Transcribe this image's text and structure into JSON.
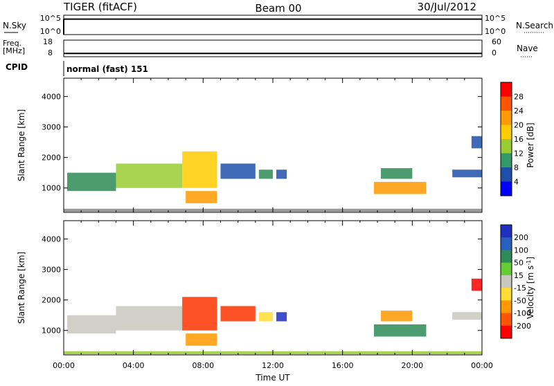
{
  "header": {
    "station": "TIGER (fitACF)",
    "beam": "Beam 00",
    "date": "30/Jul/2012"
  },
  "cpid_text": "normal (fast) 151",
  "chart_data": [
    {
      "type": "line",
      "name": "nsky-nsearch",
      "left_label": "N.Sky",
      "right_label": "N.Search",
      "left_ticks": [
        "10^5",
        "10^0"
      ],
      "right_ticks": [
        "10^5",
        "10^0"
      ],
      "xlim": [
        0,
        24
      ],
      "ylim": [
        0,
        5
      ],
      "value_level": 4
    },
    {
      "type": "line",
      "name": "freq-nave",
      "left_label_line1": "Freq.",
      "left_label_line2": "[MHz]",
      "right_label": "Nave",
      "left_ticks": [
        "18",
        "8"
      ],
      "right_ticks": [
        "60",
        "0"
      ],
      "xlim": [
        0,
        24
      ],
      "ylim": [
        8,
        18
      ],
      "value_level": 10,
      "cpid_label": "CPID"
    },
    {
      "type": "heatmap",
      "name": "power",
      "ylabel": "Slant Range [km]",
      "yticks": [
        "4000",
        "3000",
        "2000",
        "1000"
      ],
      "ytick_values": [
        4000,
        3000,
        2000,
        1000
      ],
      "ylim": [
        200,
        4600
      ],
      "xlim": [
        0,
        24
      ],
      "colorbar": {
        "label": "Power [dB]",
        "ticks": [
          "28",
          "24",
          "20",
          "16",
          "12",
          "8",
          "4"
        ],
        "colors": [
          "#ff0000",
          "#ff5500",
          "#ff9900",
          "#ffcc00",
          "#99cc33",
          "#339966",
          "#1f4faa",
          "#0000ff"
        ]
      },
      "blobs": [
        {
          "t0": 0.2,
          "t1": 3.0,
          "r0": 900,
          "r1": 1500,
          "color": "#2e8b57"
        },
        {
          "t0": 3.0,
          "t1": 6.8,
          "r0": 1000,
          "r1": 1800,
          "color": "#9acd32"
        },
        {
          "t0": 6.8,
          "t1": 8.8,
          "r0": 1000,
          "r1": 2200,
          "color": "#ffcc00"
        },
        {
          "t0": 7.0,
          "t1": 8.8,
          "r0": 500,
          "r1": 900,
          "color": "#ff9900"
        },
        {
          "t0": 9.0,
          "t1": 11.0,
          "r0": 1300,
          "r1": 1800,
          "color": "#1f4faa"
        },
        {
          "t0": 11.2,
          "t1": 12.0,
          "r0": 1300,
          "r1": 1600,
          "color": "#2e8b57"
        },
        {
          "t0": 12.2,
          "t1": 12.8,
          "r0": 1300,
          "r1": 1600,
          "color": "#1f4faa"
        },
        {
          "t0": 17.8,
          "t1": 20.8,
          "r0": 800,
          "r1": 1200,
          "color": "#ff9900"
        },
        {
          "t0": 18.2,
          "t1": 20.0,
          "r0": 1300,
          "r1": 1650,
          "color": "#2e8b57"
        },
        {
          "t0": 22.3,
          "t1": 24.0,
          "r0": 1350,
          "r1": 1600,
          "color": "#1f4faa"
        },
        {
          "t0": 23.4,
          "t1": 24.0,
          "r0": 2300,
          "r1": 2700,
          "color": "#1f4faa"
        },
        {
          "t0": 0.0,
          "t1": 24.0,
          "r0": 220,
          "r1": 320,
          "color": "#888888"
        }
      ]
    },
    {
      "type": "heatmap",
      "name": "velocity",
      "ylabel": "Slant Range [km]",
      "yticks": [
        "4000",
        "3000",
        "2000",
        "1000"
      ],
      "ytick_values": [
        4000,
        3000,
        2000,
        1000
      ],
      "ylim": [
        200,
        4600
      ],
      "xlim": [
        0,
        24
      ],
      "xticks": [
        "00:00",
        "04:00",
        "08:00",
        "12:00",
        "16:00",
        "20:00",
        "00:00"
      ],
      "xtick_values": [
        0,
        4,
        8,
        12,
        16,
        20,
        24
      ],
      "xlabel": "Time UT",
      "colorbar": {
        "label": "Velocity [m s",
        "label_sup": "-1",
        "label_end": "]",
        "ticks": [
          "200",
          "100",
          "50",
          "15",
          "-15",
          "-50",
          "-100",
          "-200"
        ],
        "colors": [
          "#1f2fbf",
          "#2a5fbf",
          "#2e8b57",
          "#66cc33",
          "#c8c8c0",
          "#ffdd33",
          "#ff9900",
          "#ff5500",
          "#ff0000"
        ]
      },
      "blobs": [
        {
          "t0": 0.2,
          "t1": 3.0,
          "r0": 900,
          "r1": 1500,
          "color": "#c8c8c0"
        },
        {
          "t0": 3.0,
          "t1": 6.8,
          "r0": 1000,
          "r1": 1800,
          "color": "#c8c8c0"
        },
        {
          "t0": 6.8,
          "t1": 8.8,
          "r0": 1000,
          "r1": 2100,
          "color": "#ff3300"
        },
        {
          "t0": 7.0,
          "t1": 8.8,
          "r0": 500,
          "r1": 900,
          "color": "#ff9900"
        },
        {
          "t0": 9.0,
          "t1": 11.0,
          "r0": 1300,
          "r1": 1800,
          "color": "#ff3300"
        },
        {
          "t0": 11.2,
          "t1": 12.0,
          "r0": 1300,
          "r1": 1600,
          "color": "#ffdd33"
        },
        {
          "t0": 12.2,
          "t1": 12.8,
          "r0": 1300,
          "r1": 1600,
          "color": "#1f2fbf"
        },
        {
          "t0": 17.8,
          "t1": 20.8,
          "r0": 800,
          "r1": 1200,
          "color": "#2e8b57"
        },
        {
          "t0": 18.2,
          "t1": 20.0,
          "r0": 1300,
          "r1": 1650,
          "color": "#ff9900"
        },
        {
          "t0": 22.3,
          "t1": 24.0,
          "r0": 1350,
          "r1": 1600,
          "color": "#c8c8c0"
        },
        {
          "t0": 23.4,
          "t1": 24.0,
          "r0": 2300,
          "r1": 2700,
          "color": "#ff0000"
        },
        {
          "t0": 0.0,
          "t1": 24.0,
          "r0": 220,
          "r1": 320,
          "color": "#9acd32"
        }
      ]
    }
  ]
}
